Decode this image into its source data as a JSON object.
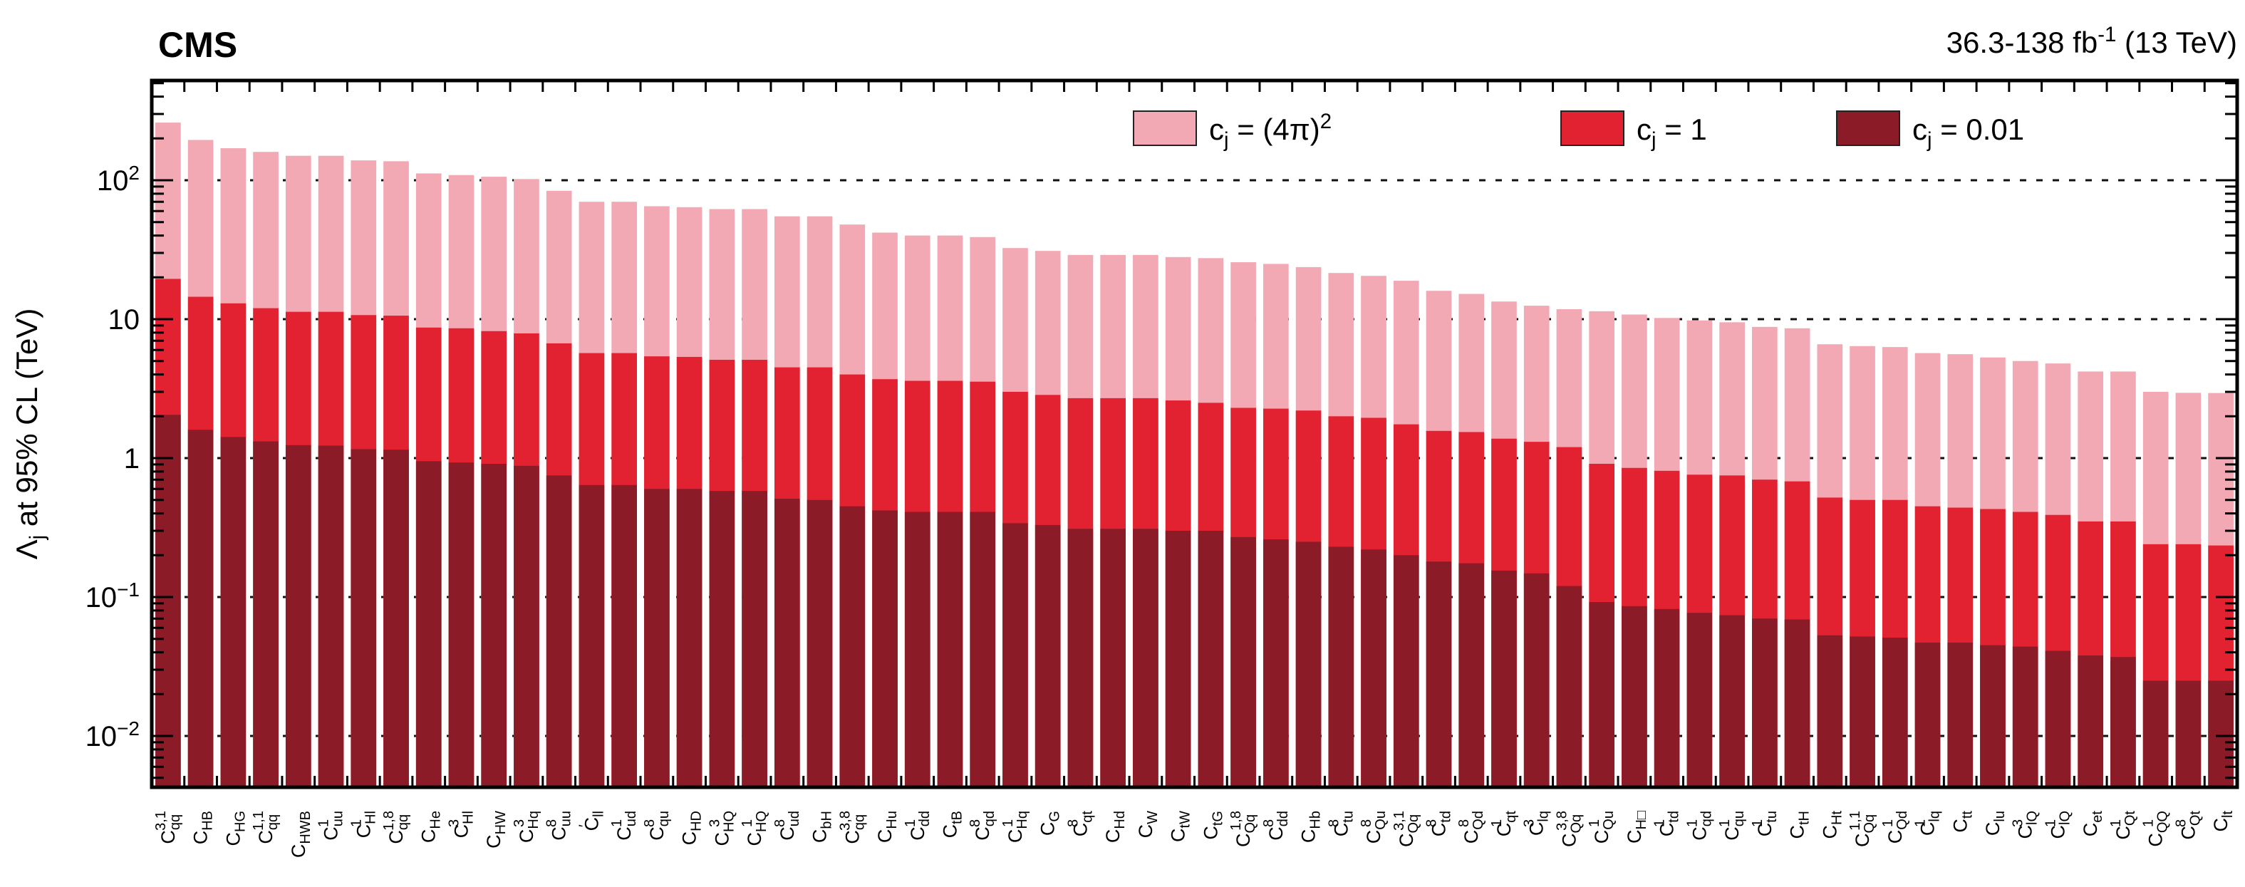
{
  "header": {
    "experiment": "CMS",
    "lumi_rich": [
      {
        "t": "36.3-138 fb"
      },
      {
        "t": "-1",
        "style": "sup"
      },
      {
        "t": " (13 TeV)"
      }
    ],
    "lumi_plain": "36.3-138 fb^-1 (13 TeV)"
  },
  "colors": {
    "pink": "#f2a9b3",
    "red": "#e32231",
    "dark": "#8c1b28",
    "frame": "#000000"
  },
  "legend": {
    "items": [
      {
        "color_key": "pink",
        "plain": "c_j = (4pi)^2",
        "rich": [
          {
            "t": "c"
          },
          {
            "t": "j",
            "style": "sub"
          },
          {
            "t": " = (4π)"
          },
          {
            "t": "2",
            "style": "sup"
          }
        ]
      },
      {
        "color_key": "red",
        "plain": "c_j = 1",
        "rich": [
          {
            "t": "c"
          },
          {
            "t": "j",
            "style": "sub"
          },
          {
            "t": " = 1"
          }
        ]
      },
      {
        "color_key": "dark",
        "plain": "c_j = 0.01",
        "rich": [
          {
            "t": "c"
          },
          {
            "t": "j",
            "style": "sub"
          },
          {
            "t": " = 0.01"
          }
        ]
      }
    ]
  },
  "y_axis": {
    "title_rich": [
      {
        "t": "Λ"
      },
      {
        "t": "j",
        "style": "sub"
      },
      {
        "t": " at 95% CL (TeV)"
      }
    ],
    "title_plain": "Lambda_j at 95% CL (TeV)",
    "scale": "log",
    "range": [
      0.0043,
      520
    ],
    "ticks": [
      {
        "v": 100,
        "base": "10",
        "exp": "2"
      },
      {
        "v": 10,
        "base": "10",
        "exp": ""
      },
      {
        "v": 1,
        "base": "1",
        "exp": ""
      },
      {
        "v": 0.1,
        "base": "10",
        "exp": "−1"
      },
      {
        "v": 0.01,
        "base": "10",
        "exp": "−2"
      }
    ],
    "gridlines": [
      100,
      10,
      1,
      0.1,
      0.01
    ]
  },
  "chart_data": {
    "type": "bar",
    "stacked": false,
    "grid": "dashed horizontal at decades",
    "legend_position": "top inside",
    "ylim": [
      0.0043,
      520
    ],
    "categories": [
      {
        "s": "qq",
        "p": "3,1"
      },
      {
        "s": "HB",
        "p": ""
      },
      {
        "s": "HG",
        "p": ""
      },
      {
        "s": "qq",
        "p": "1,1"
      },
      {
        "s": "HWB",
        "p": ""
      },
      {
        "s": "uu",
        "p": "1"
      },
      {
        "s": "Hl",
        "p": "1"
      },
      {
        "s": "qq",
        "p": "1,8"
      },
      {
        "s": "He",
        "p": ""
      },
      {
        "s": "Hl",
        "p": "3"
      },
      {
        "s": "HW",
        "p": ""
      },
      {
        "s": "Hq",
        "p": "3"
      },
      {
        "s": "uu",
        "p": "8"
      },
      {
        "s": "ll",
        "p": "′"
      },
      {
        "s": "ud",
        "p": "1"
      },
      {
        "s": "qu",
        "p": "8"
      },
      {
        "s": "HD",
        "p": ""
      },
      {
        "s": "HQ",
        "p": "3"
      },
      {
        "s": "HQ",
        "p": "1"
      },
      {
        "s": "ud",
        "p": "8"
      },
      {
        "s": "bH",
        "p": ""
      },
      {
        "s": "qq",
        "p": "3,8"
      },
      {
        "s": "Hu",
        "p": ""
      },
      {
        "s": "dd",
        "p": "1"
      },
      {
        "s": "tB",
        "p": ""
      },
      {
        "s": "qd",
        "p": "8"
      },
      {
        "s": "Hq",
        "p": "1"
      },
      {
        "s": "G",
        "p": ""
      },
      {
        "s": "qt",
        "p": "8"
      },
      {
        "s": "Hd",
        "p": ""
      },
      {
        "s": "W",
        "p": ""
      },
      {
        "s": "tW",
        "p": ""
      },
      {
        "s": "tG",
        "p": ""
      },
      {
        "s": "Qq",
        "p": "1,8"
      },
      {
        "s": "dd",
        "p": "8"
      },
      {
        "s": "Hb",
        "p": ""
      },
      {
        "s": "tu",
        "p": "8"
      },
      {
        "s": "Qu",
        "p": "8"
      },
      {
        "s": "Qq",
        "p": "3,1"
      },
      {
        "s": "td",
        "p": "8"
      },
      {
        "s": "Qd",
        "p": "8"
      },
      {
        "s": "qt",
        "p": "1"
      },
      {
        "s": "lq",
        "p": "3"
      },
      {
        "s": "Qq",
        "p": "3,8"
      },
      {
        "s": "Qu",
        "p": "1"
      },
      {
        "s": "H□",
        "p": ""
      },
      {
        "s": "td",
        "p": "1"
      },
      {
        "s": "qd",
        "p": "1"
      },
      {
        "s": "qu",
        "p": "1"
      },
      {
        "s": "tu",
        "p": "1"
      },
      {
        "s": "tH",
        "p": ""
      },
      {
        "s": "Ht",
        "p": ""
      },
      {
        "s": "Qq",
        "p": "1,1"
      },
      {
        "s": "Qd",
        "p": "1"
      },
      {
        "s": "lq",
        "p": "1"
      },
      {
        "s": "tt",
        "p": ""
      },
      {
        "s": "lu",
        "p": ""
      },
      {
        "s": "lQ",
        "p": "3"
      },
      {
        "s": "lQ",
        "p": "1"
      },
      {
        "s": "et",
        "p": ""
      },
      {
        "s": "Qt",
        "p": "1"
      },
      {
        "s": "QQ",
        "p": "1"
      },
      {
        "s": "Qt",
        "p": "8"
      },
      {
        "s": "lt",
        "p": ""
      }
    ],
    "series": [
      {
        "key": "loose",
        "name": "c_j = (4pi)^2",
        "color_key": "pink",
        "values": [
          260,
          195,
          170,
          160,
          150,
          150,
          139,
          137,
          112,
          109,
          106,
          102,
          84,
          70,
          70,
          65,
          64,
          62,
          62,
          55,
          55,
          48,
          42,
          40,
          40,
          39,
          32.5,
          31,
          29,
          29,
          29,
          28,
          27.5,
          25.7,
          25,
          23.7,
          21.5,
          20.5,
          18.9,
          16,
          15.2,
          13.4,
          12.5,
          11.8,
          11.4,
          10.8,
          10.2,
          9.8,
          9.5,
          8.8,
          8.6,
          6.6,
          6.4,
          6.3,
          5.7,
          5.6,
          5.3,
          5.0,
          4.8,
          4.2,
          4.2,
          3.0,
          2.95,
          2.94
        ]
      },
      {
        "key": "unit",
        "name": "c_j = 1",
        "color_key": "red",
        "values": [
          19.5,
          14.5,
          13,
          12,
          11.3,
          11.3,
          10.7,
          10.6,
          8.7,
          8.6,
          8.2,
          7.9,
          6.7,
          5.7,
          5.7,
          5.4,
          5.35,
          5.1,
          5.1,
          4.5,
          4.5,
          4.0,
          3.7,
          3.6,
          3.6,
          3.55,
          3.0,
          2.85,
          2.7,
          2.7,
          2.7,
          2.6,
          2.5,
          2.3,
          2.27,
          2.2,
          2.0,
          1.95,
          1.75,
          1.57,
          1.54,
          1.38,
          1.31,
          1.2,
          0.91,
          0.85,
          0.81,
          0.76,
          0.75,
          0.7,
          0.68,
          0.52,
          0.5,
          0.5,
          0.45,
          0.44,
          0.43,
          0.41,
          0.39,
          0.35,
          0.35,
          0.24,
          0.24,
          0.235
        ]
      },
      {
        "key": "small",
        "name": "c_j = 0.01",
        "color_key": "dark",
        "values": [
          2.05,
          1.6,
          1.42,
          1.32,
          1.24,
          1.23,
          1.16,
          1.15,
          0.95,
          0.93,
          0.91,
          0.88,
          0.75,
          0.64,
          0.64,
          0.6,
          0.6,
          0.58,
          0.58,
          0.51,
          0.5,
          0.45,
          0.42,
          0.41,
          0.41,
          0.41,
          0.34,
          0.33,
          0.31,
          0.31,
          0.31,
          0.3,
          0.3,
          0.27,
          0.26,
          0.25,
          0.23,
          0.22,
          0.2,
          0.18,
          0.175,
          0.155,
          0.148,
          0.12,
          0.092,
          0.086,
          0.082,
          0.077,
          0.074,
          0.07,
          0.069,
          0.053,
          0.052,
          0.051,
          0.047,
          0.047,
          0.045,
          0.044,
          0.041,
          0.038,
          0.037,
          0.025,
          0.025,
          0.025
        ]
      }
    ]
  }
}
